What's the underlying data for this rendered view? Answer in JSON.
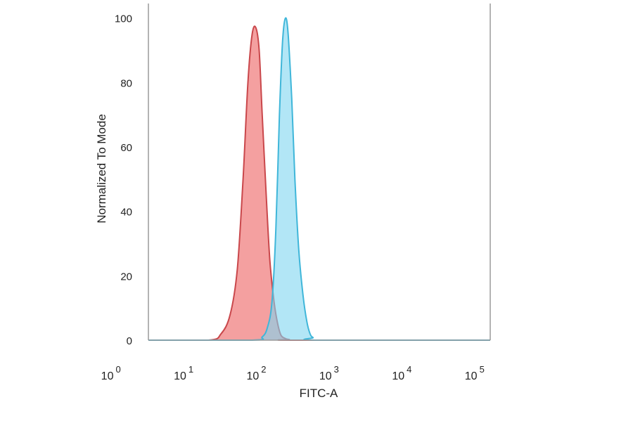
{
  "chart_data": {
    "type": "area",
    "title": "",
    "xlabel": "FITC-A",
    "ylabel": "Normalized To Mode",
    "x_scale": "log",
    "xlim": [
      3,
      150000
    ],
    "ylim": [
      0,
      103
    ],
    "y_ticks": [
      0,
      20,
      40,
      60,
      80,
      100
    ],
    "x_ticks": [
      {
        "value": 1,
        "base": "10",
        "exp": "0"
      },
      {
        "value": 10,
        "base": "10",
        "exp": "1"
      },
      {
        "value": 100,
        "base": "10",
        "exp": "2"
      },
      {
        "value": 1000,
        "base": "10",
        "exp": "3"
      },
      {
        "value": 10000,
        "base": "10",
        "exp": "4"
      },
      {
        "value": 100000,
        "base": "10",
        "exp": "5"
      }
    ],
    "grid": false,
    "legend": "none",
    "series": [
      {
        "color": "#f08080",
        "stroke": "#c9474b",
        "x": [
          3,
          20,
          30,
          40,
          50,
          60,
          70,
          80,
          90,
          100,
          110,
          125,
          140,
          160,
          180,
          200,
          230,
          260,
          300,
          150000
        ],
        "y": [
          0,
          0,
          2,
          8,
          22,
          50,
          80,
          95,
          97,
          90,
          70,
          45,
          25,
          12,
          5,
          1.5,
          0.5,
          0.2,
          0,
          0
        ]
      },
      {
        "color": "#7fd5f0",
        "stroke": "#3fb6d9",
        "x": [
          3,
          80,
          110,
          130,
          150,
          170,
          190,
          210,
          230,
          250,
          280,
          310,
          350,
          400,
          450,
          500,
          550,
          650,
          150000
        ],
        "y": [
          0,
          0,
          1,
          4,
          12,
          35,
          70,
          93,
          100,
          95,
          75,
          50,
          28,
          14,
          6,
          2,
          0.8,
          0,
          0
        ]
      }
    ]
  }
}
